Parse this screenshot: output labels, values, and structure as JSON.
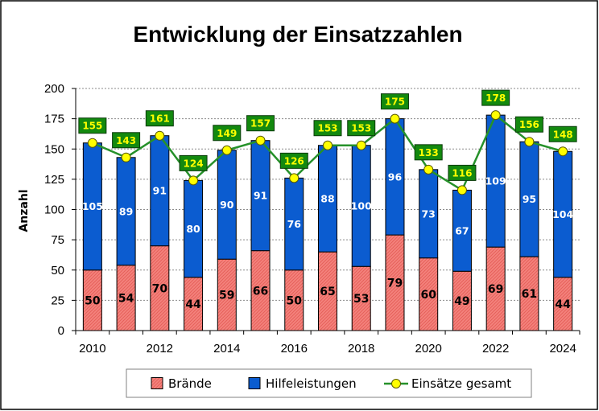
{
  "chart_data": {
    "type": "bar",
    "stacked": true,
    "title": "Entwicklung der Einsatzzahlen",
    "ylabel": "Anzahl",
    "x": [
      2010,
      2011,
      2012,
      2013,
      2014,
      2015,
      2016,
      2017,
      2018,
      2019,
      2020,
      2021,
      2022,
      2023,
      2024
    ],
    "x_ticks": [
      2010,
      2012,
      2014,
      2016,
      2018,
      2020,
      2022,
      2024
    ],
    "ylim": [
      0,
      200
    ],
    "y_ticks": [
      0,
      25,
      50,
      75,
      100,
      125,
      150,
      175,
      200
    ],
    "grid": true,
    "legend_position": "bottom",
    "data_labels": true,
    "series": [
      {
        "name": "Brände",
        "type": "bar",
        "color": "#f4837d",
        "label_color": "#000000",
        "values": [
          50,
          54,
          70,
          44,
          59,
          66,
          50,
          65,
          53,
          79,
          60,
          49,
          69,
          61,
          44
        ]
      },
      {
        "name": "Hilfeleistungen",
        "type": "bar",
        "color": "#0b5cd0",
        "label_color": "#ffffff",
        "values": [
          105,
          89,
          91,
          80,
          90,
          91,
          76,
          88,
          100,
          96,
          73,
          67,
          109,
          95,
          104
        ]
      },
      {
        "name": "Einsätze gesamt",
        "type": "line",
        "color": "#26912a",
        "marker_color": "#ffff00",
        "label_color": "#ffff00",
        "label_background": "#13890f",
        "values": [
          155,
          143,
          161,
          124,
          149,
          157,
          126,
          153,
          153,
          175,
          133,
          116,
          178,
          156,
          148
        ]
      }
    ]
  }
}
